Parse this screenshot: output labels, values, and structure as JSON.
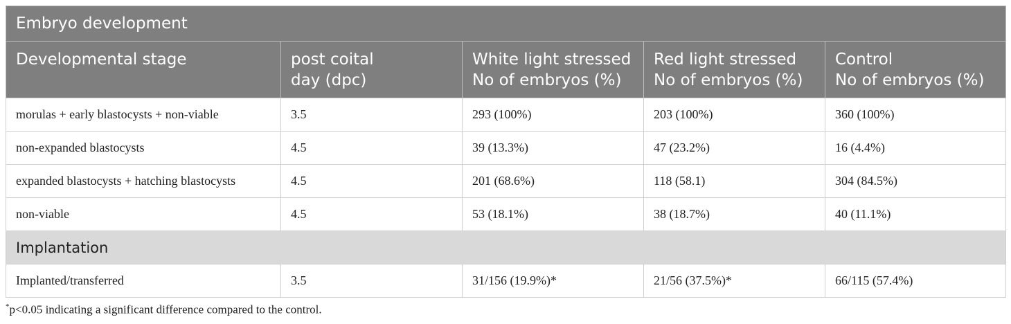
{
  "table": {
    "section1_title": "Embryo development",
    "headers": [
      [
        "Developmental stage"
      ],
      [
        "post coital",
        "day (dpc)"
      ],
      [
        "White light stressed",
        "No of embryos (%)"
      ],
      [
        "Red light stressed",
        "No of embryos (%)"
      ],
      [
        "Control",
        "No of embryos (%)"
      ]
    ],
    "rows": [
      [
        "morulas + early blastocysts + non-viable",
        "3.5",
        "293 (100%)",
        "203 (100%)",
        "360 (100%)"
      ],
      [
        "non-expanded blastocysts",
        "4.5",
        "39 (13.3%)",
        "47 (23.2%)",
        "16 (4.4%)"
      ],
      [
        "expanded blastocysts + hatching blastocysts",
        "4.5",
        "201 (68.6%)",
        "118 (58.1)",
        "304 (84.5%)"
      ],
      [
        "non-viable",
        "4.5",
        "53 (18.1%)",
        "38 (18.7%)",
        "40 (11.1%)"
      ]
    ],
    "section2_title": "Implantation",
    "implantation_row": [
      "Implanted/transferred",
      "3.5",
      "31/156 (19.9%)*",
      "21/56 (37.5%)*",
      "66/115 (57.4%)"
    ]
  },
  "footnote": {
    "marker": "*",
    "text": "p<0.05 indicating a significant difference compared to the control."
  }
}
